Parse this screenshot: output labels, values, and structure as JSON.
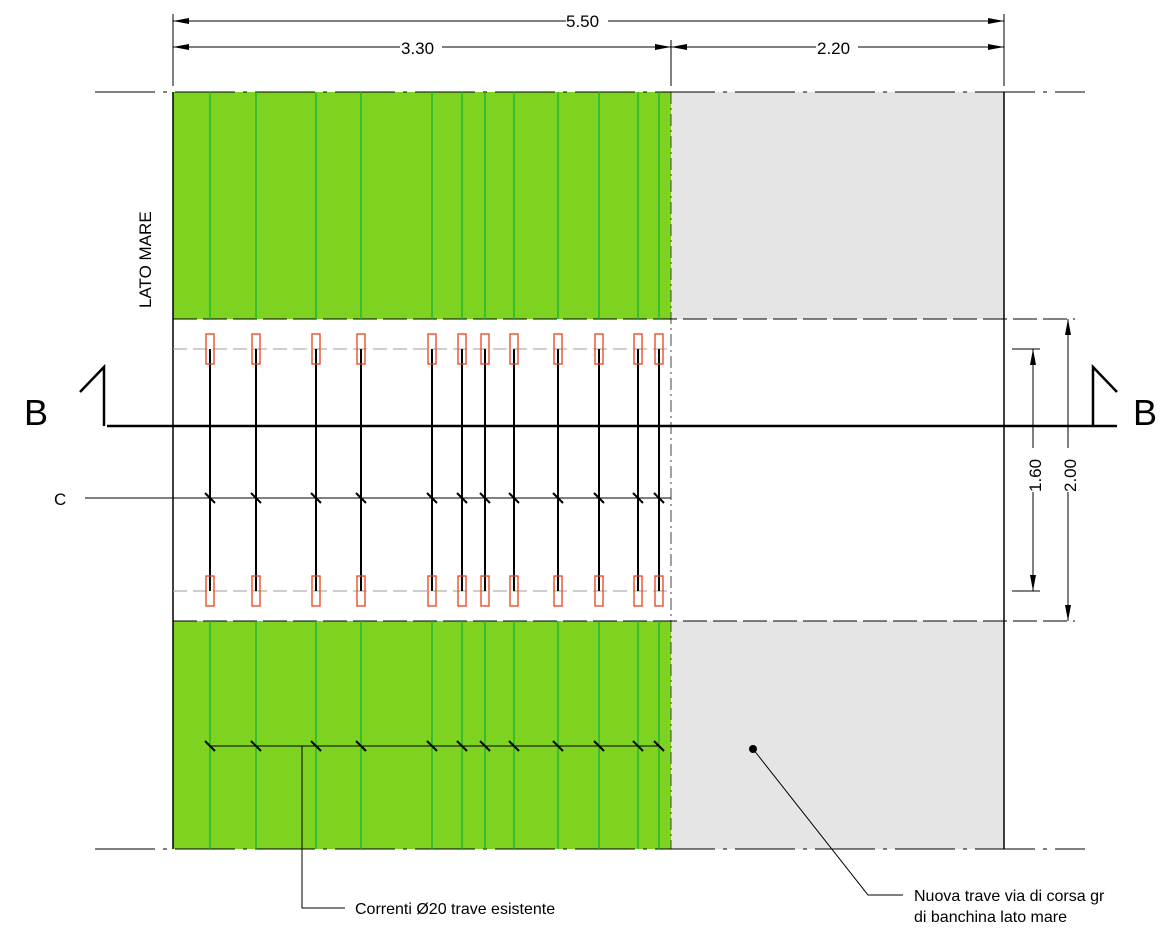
{
  "colors": {
    "green_fill": "#7ed321",
    "green_rebar": "#16b23a",
    "gray_fill": "#e5e5e5",
    "red_box": "#e8421a",
    "dash_gray": "#9e9e9e",
    "line": "#000000"
  },
  "dimensions": {
    "total_width": "5.50",
    "existing_width": "3.30",
    "new_width": "2.20",
    "inner_height": "1.60",
    "outer_height": "2.00"
  },
  "section_labels": {
    "left": "B",
    "right": "B",
    "cut": "C"
  },
  "side_label": "LATO MARE",
  "notes": {
    "rebar_line1": "Correnti Ø20 trave esistente",
    "new_beam_line1": "Nuova trave via di corsa gr",
    "new_beam_line2": "di banchina lato mare"
  },
  "bar_count": 12
}
